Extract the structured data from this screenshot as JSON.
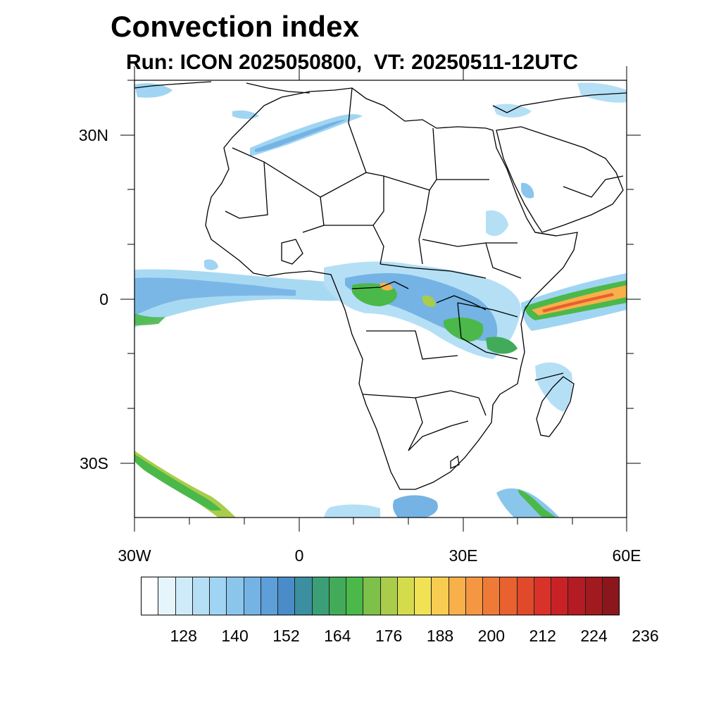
{
  "title": "Convection index",
  "subtitle": "Run: ICON 2025050800,  VT: 20250511-12UTC",
  "lat_labels": [
    "30N",
    "0",
    "30S"
  ],
  "lon_labels": [
    "30W",
    "0",
    "30E",
    "60E"
  ],
  "colorbar": {
    "labels": [
      "128",
      "140",
      "152",
      "164",
      "176",
      "188",
      "200",
      "212",
      "224",
      "236"
    ],
    "colors": [
      "#ffffff",
      "#e6f4fc",
      "#cfeaf8",
      "#b5dff5",
      "#9fd5f2",
      "#8ac6ec",
      "#74b3e4",
      "#5d9fd8",
      "#4a8cc8",
      "#3b8fa0",
      "#3a9f76",
      "#42ab5a",
      "#4bb84a",
      "#7dc04a",
      "#a9cd4a",
      "#d4dc4c",
      "#f1e254",
      "#f8cc50",
      "#f7b04a",
      "#f59642",
      "#ef7a38",
      "#e8612f",
      "#e04a2b",
      "#d93229",
      "#c92226",
      "#b51b23",
      "#a01a20",
      "#8b171c"
    ]
  }
}
